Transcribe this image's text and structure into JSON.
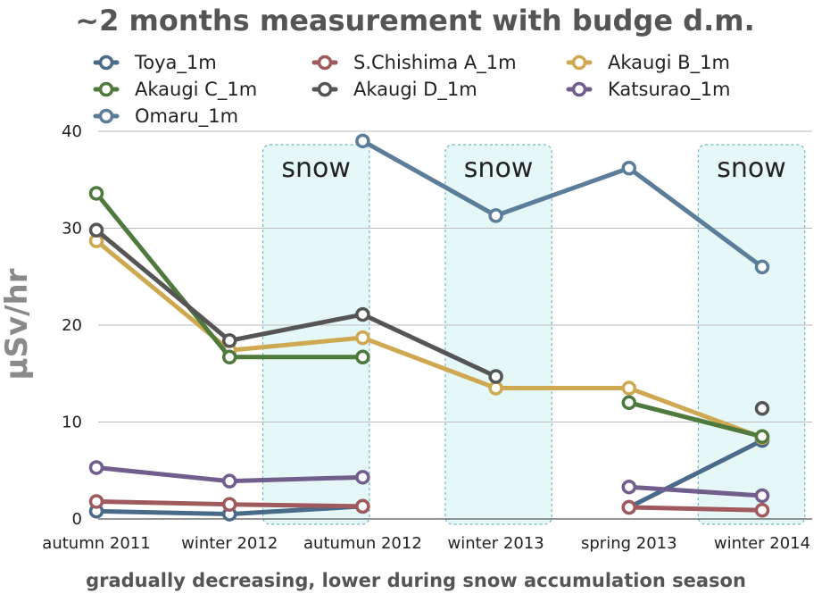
{
  "chart_data": {
    "type": "line",
    "title": "~2 months measurement with budge d.m.",
    "xlabel": "gradually decreasing, lower during snow accumulation season",
    "ylabel": "μSv/hr",
    "ylim": [
      0,
      40
    ],
    "yticks": [
      0,
      10,
      20,
      30,
      40
    ],
    "grid": true,
    "legend_position": "top",
    "categories": [
      "autumn 2011",
      "winter 2012",
      "autumun 2012",
      "winter 2013",
      "spring 2013",
      "winter 2014"
    ],
    "bands": [
      {
        "label": "snow",
        "from": 1.25,
        "to": 2.05
      },
      {
        "label": "snow",
        "from": 2.62,
        "to": 3.42
      },
      {
        "label": "snow",
        "from": 4.52,
        "to": 5.32
      }
    ],
    "series": [
      {
        "name": "Toya_1m",
        "color": "#4a6a8a",
        "points": [
          [
            0,
            0.8
          ],
          [
            1,
            0.5
          ],
          [
            2,
            1.3
          ],
          [
            4,
            1.2
          ],
          [
            5,
            8.1
          ]
        ]
      },
      {
        "name": "S.Chishima A_1m",
        "color": "#a05a5e",
        "points": [
          [
            0,
            1.8
          ],
          [
            1,
            1.5
          ],
          [
            2,
            1.3
          ],
          [
            4,
            1.2
          ],
          [
            5,
            0.9
          ]
        ]
      },
      {
        "name": "Akaugi B_1m",
        "color": "#cfa951",
        "points": [
          [
            0,
            28.7
          ],
          [
            1,
            17.4
          ],
          [
            2,
            18.7
          ],
          [
            3,
            13.5
          ],
          [
            4,
            13.5
          ],
          [
            5,
            8.4
          ]
        ]
      },
      {
        "name": "Akaugi C_1m",
        "color": "#4f7a3e",
        "points": [
          [
            0,
            33.6
          ],
          [
            1,
            16.7
          ],
          [
            2,
            16.7
          ],
          [
            4,
            12.0
          ],
          [
            5,
            8.5
          ]
        ]
      },
      {
        "name": "Akaugi D_1m",
        "color": "#555555",
        "points": [
          [
            0,
            29.8
          ],
          [
            1,
            18.4
          ],
          [
            2,
            21.1
          ],
          [
            3,
            14.7
          ],
          [
            5,
            11.4
          ]
        ]
      },
      {
        "name": "Katsurao_1m",
        "color": "#725e8c",
        "points": [
          [
            0,
            5.3
          ],
          [
            1,
            3.9
          ],
          [
            2,
            4.3
          ],
          [
            4,
            3.3
          ],
          [
            5,
            2.4
          ]
        ]
      },
      {
        "name": "Omaru_1m",
        "color": "#5b7d99",
        "points": [
          [
            2,
            39.0
          ],
          [
            3,
            31.3
          ],
          [
            4,
            36.2
          ],
          [
            5,
            26.0
          ]
        ]
      }
    ]
  }
}
